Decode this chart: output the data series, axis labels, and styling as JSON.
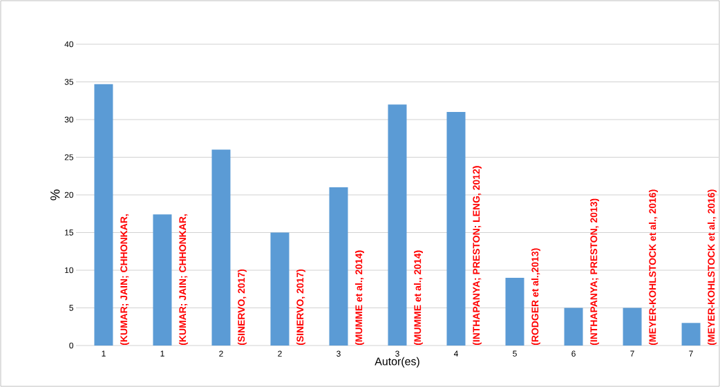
{
  "chart_data": {
    "type": "bar",
    "xlabel": "Autor(es)",
    "ylabel": "%",
    "categories": [
      "1",
      "1",
      "2",
      "2",
      "3",
      "3",
      "4",
      "5",
      "6",
      "7",
      "7"
    ],
    "values": [
      34.7,
      17.4,
      26,
      15,
      21,
      32,
      31,
      9,
      5,
      5,
      3
    ],
    "color": "#5b9bd5",
    "ylim": [
      0,
      40
    ],
    "yticks": [
      0,
      5,
      10,
      15,
      20,
      25,
      30,
      35,
      40
    ],
    "grid": "y",
    "annotations": [
      "(KUMAR; JAIN; CHHONKAR,",
      "(KUMAR; JAIN; CHHONKAR,",
      "(SINERVO, 2017)",
      "(SINERVO, 2017)",
      "(MUMME et al., 2014)",
      "(MUMME et al., 2014)",
      "(INTHAPANYA; PRESTON; LENG, 2012)",
      "(RODGER et al.,2013)",
      "(INTHAPANYA; PRESTON,  2013)",
      "(MEYER-KOHLSTOCK et al., 2016)",
      "(MEYER-KOHLSTOCK et al., 2016)"
    ]
  }
}
